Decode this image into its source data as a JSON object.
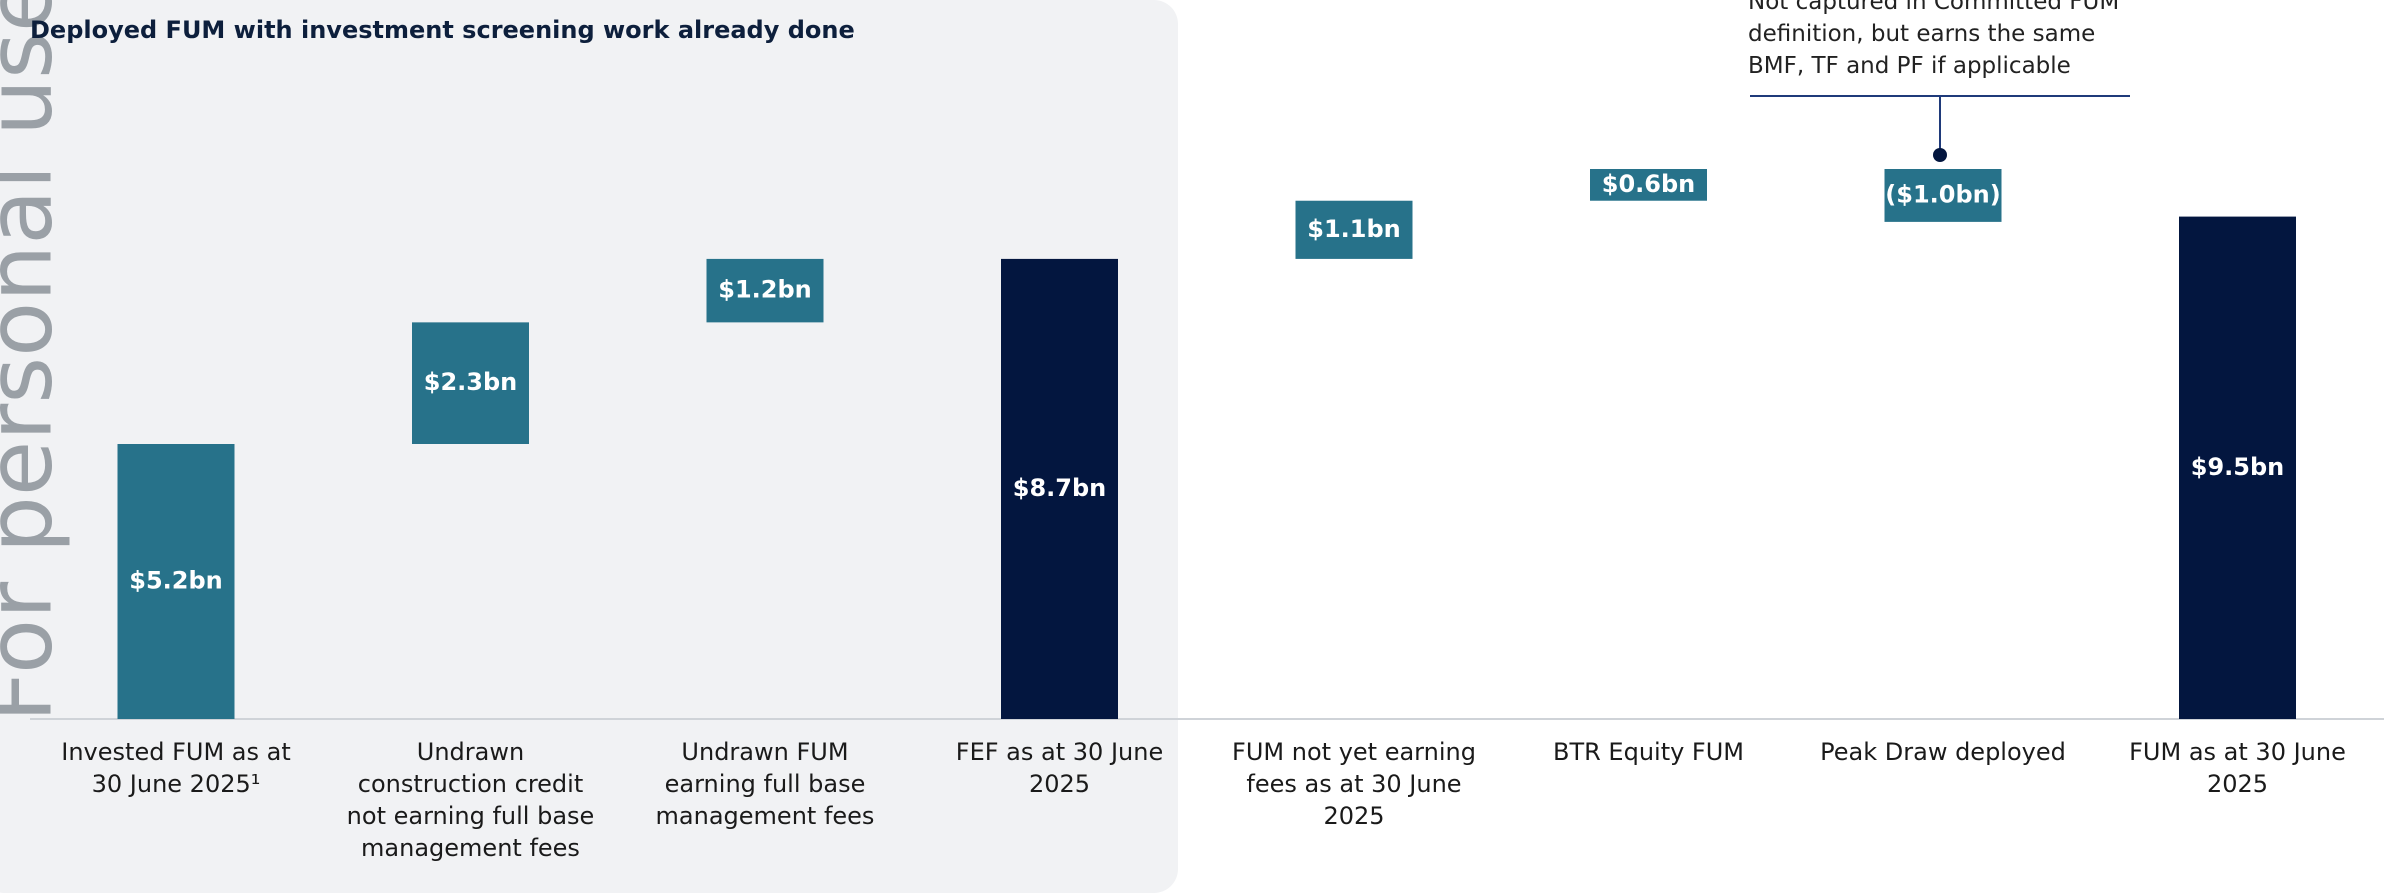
{
  "chart_data": {
    "type": "waterfall",
    "panel_title": "Deployed FUM with investment screening work already done",
    "annotation": "Not captured in Committed FUM definition, but earns the same BMF, TF and PF if applicable",
    "watermark": "For personal use only",
    "categories": [
      "Invested FUM as at 30 June 2025¹",
      "Undrawn construction credit not earning full base management fees",
      "Undrawn FUM earning full base management fees",
      "FEF as at 30 June 2025",
      "FUM not yet earning fees as at 30 June 2025",
      "BTR Equity FUM",
      "Peak Draw deployed",
      "FUM as at 30 June 2025"
    ],
    "values": [
      5.2,
      2.3,
      1.2,
      8.7,
      1.1,
      0.6,
      -1.0,
      9.5
    ],
    "value_labels": [
      "$5.2bn",
      "$2.3bn",
      "$1.2bn",
      "$8.7bn",
      "$1.1bn",
      "$0.6bn",
      "($1.0bn)",
      "$9.5bn"
    ],
    "measure": [
      "relative",
      "relative",
      "relative",
      "total",
      "relative",
      "relative",
      "relative",
      "total"
    ],
    "total_color": "#03163f",
    "step_color": "#27728a"
  }
}
